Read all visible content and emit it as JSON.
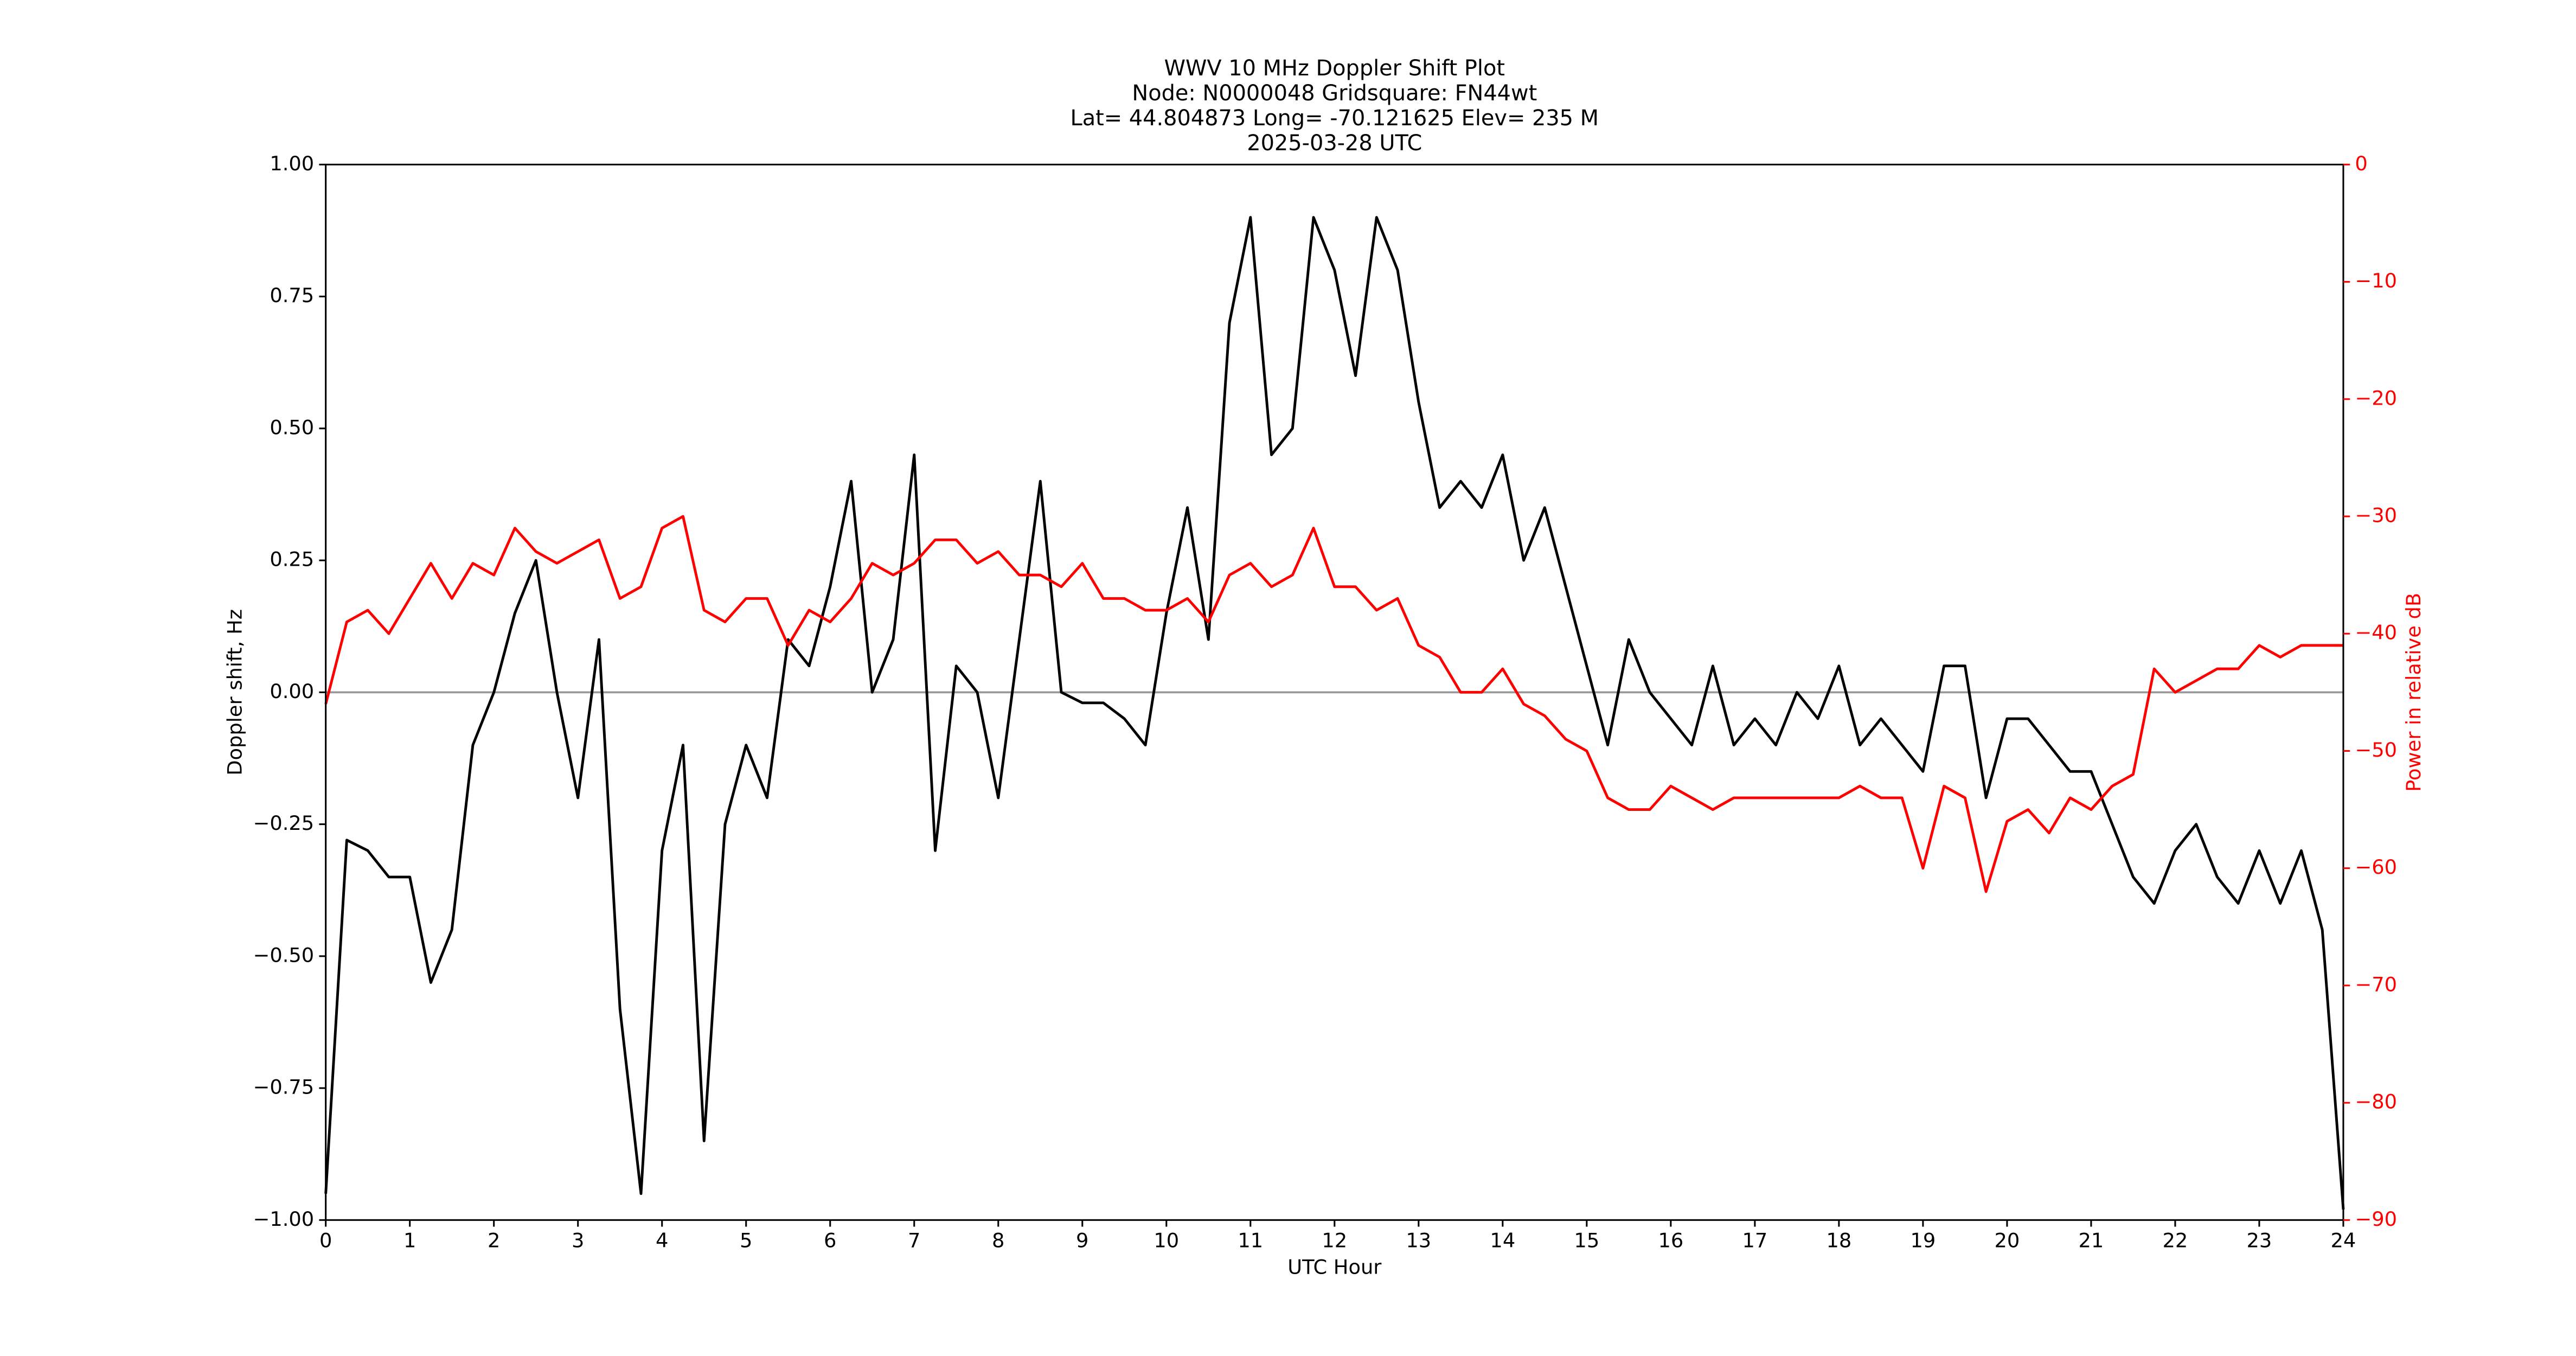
{
  "chart_data": {
    "type": "line",
    "title": [
      "WWV 10 MHz Doppler Shift Plot",
      "Node:  N0000048     Gridsquare:  FN44wt",
      "Lat= 44.804873    Long= -70.121625    Elev= 235 M",
      "2025-03-28  UTC"
    ],
    "x_label": "UTC Hour",
    "y_label": "Doppler shift, Hz",
    "y2_label": "Power in relative dB",
    "y2_color": "#ff0000",
    "x": [
      0,
      0.25,
      0.5,
      0.75,
      1,
      1.25,
      1.5,
      1.75,
      2,
      2.25,
      2.5,
      2.75,
      3,
      3.25,
      3.5,
      3.75,
      4,
      4.25,
      4.5,
      4.75,
      5,
      5.25,
      5.5,
      5.75,
      6,
      6.25,
      6.5,
      6.75,
      7,
      7.25,
      7.5,
      7.75,
      8,
      8.25,
      8.5,
      8.75,
      9,
      9.25,
      9.5,
      9.75,
      10,
      10.25,
      10.5,
      10.75,
      11,
      11.25,
      11.5,
      11.75,
      12,
      12.25,
      12.5,
      12.75,
      13,
      13.25,
      13.5,
      13.75,
      14,
      14.25,
      14.5,
      14.75,
      15,
      15.25,
      15.5,
      15.75,
      16,
      16.25,
      16.5,
      16.75,
      17,
      17.25,
      17.5,
      17.75,
      18,
      18.25,
      18.5,
      18.75,
      19,
      19.25,
      19.5,
      19.75,
      20,
      20.25,
      20.5,
      20.75,
      21,
      21.25,
      21.5,
      21.75,
      22,
      22.25,
      22.5,
      22.75,
      23,
      23.25,
      23.5,
      23.75,
      24
    ],
    "series": [
      {
        "color": "#000000",
        "values": [
          -0.95,
          -0.28,
          -0.3,
          -0.35,
          -0.35,
          -0.55,
          -0.45,
          -0.1,
          0.0,
          0.15,
          0.25,
          0.0,
          -0.2,
          0.1,
          -0.6,
          -0.95,
          -0.3,
          -0.1,
          -0.85,
          -0.25,
          -0.1,
          -0.2,
          0.1,
          0.05,
          0.2,
          0.4,
          0.0,
          0.1,
          0.45,
          -0.3,
          0.05,
          0.0,
          -0.2,
          0.1,
          0.4,
          0.0,
          -0.02,
          -0.02,
          -0.05,
          -0.1,
          0.15,
          0.35,
          0.1,
          0.7,
          0.9,
          0.45,
          0.5,
          0.9,
          0.8,
          0.6,
          0.9,
          0.8,
          0.55,
          0.35,
          0.4,
          0.35,
          0.45,
          0.25,
          0.35,
          0.2,
          0.05,
          -0.1,
          0.1,
          0.0,
          -0.05,
          -0.1,
          0.05,
          -0.1,
          -0.05,
          -0.1,
          0.0,
          -0.05,
          0.05,
          -0.1,
          -0.05,
          -0.1,
          -0.15,
          0.05,
          0.05,
          -0.2,
          -0.05,
          -0.05,
          -0.1,
          -0.15,
          -0.15,
          -0.25,
          -0.35,
          -0.4,
          -0.3,
          -0.25,
          -0.35,
          -0.4,
          -0.3,
          -0.4,
          -0.3,
          -0.45,
          -0.98
        ]
      },
      {
        "color": "#ff0000",
        "axis": "y2",
        "values": [
          -46,
          -39,
          -38,
          -40,
          -37,
          -34,
          -37,
          -34,
          -35,
          -31,
          -33,
          -34,
          -33,
          -32,
          -37,
          -36,
          -31,
          -30,
          -38,
          -39,
          -37,
          -37,
          -41,
          -38,
          -39,
          -37,
          -34,
          -35,
          -34,
          -32,
          -32,
          -34,
          -33,
          -35,
          -35,
          -36,
          -34,
          -37,
          -37,
          -38,
          -38,
          -37,
          -39,
          -35,
          -34,
          -36,
          -35,
          -31,
          -36,
          -36,
          -38,
          -37,
          -41,
          -42,
          -45,
          -45,
          -43,
          -46,
          -47,
          -49,
          -50,
          -54,
          -55,
          -55,
          -53,
          -54,
          -55,
          -54,
          -54,
          -54,
          -54,
          -54,
          -54,
          -53,
          -54,
          -54,
          -60,
          -53,
          -54,
          -62,
          -56,
          -55,
          -57,
          -54,
          -55,
          -53,
          -52,
          -43,
          -45,
          -44,
          -43,
          -43,
          -41,
          -42,
          -41,
          -41,
          -41
        ]
      }
    ],
    "xlim": [
      0,
      24
    ],
    "xticks": [
      0,
      1,
      2,
      3,
      4,
      5,
      6,
      7,
      8,
      9,
      10,
      11,
      12,
      13,
      14,
      15,
      16,
      17,
      18,
      19,
      20,
      21,
      22,
      23,
      24
    ],
    "ylim": [
      -1,
      1
    ],
    "yticks": [
      {
        "value": -1,
        "label": "−1.00"
      },
      {
        "value": -0.75,
        "label": "−0.75"
      },
      {
        "value": -0.5,
        "label": "−0.50"
      },
      {
        "value": -0.25,
        "label": "−0.25"
      },
      {
        "value": 0,
        "label": "0.00"
      },
      {
        "value": 0.25,
        "label": "0.25"
      },
      {
        "value": 0.5,
        "label": "0.50"
      },
      {
        "value": 0.75,
        "label": "0.75"
      },
      {
        "value": 1,
        "label": "1.00"
      }
    ],
    "y2lim": [
      -90,
      0
    ],
    "y2ticks": [
      {
        "value": -90,
        "label": "−90"
      },
      {
        "value": -80,
        "label": "−80"
      },
      {
        "value": -70,
        "label": "−70"
      },
      {
        "value": -60,
        "label": "−60"
      },
      {
        "value": -50,
        "label": "−50"
      },
      {
        "value": -40,
        "label": "−40"
      },
      {
        "value": -30,
        "label": "−30"
      },
      {
        "value": -20,
        "label": "−20"
      },
      {
        "value": -10,
        "label": "−10"
      },
      0
    ],
    "hline": 0,
    "hline_color": "#999999"
  }
}
